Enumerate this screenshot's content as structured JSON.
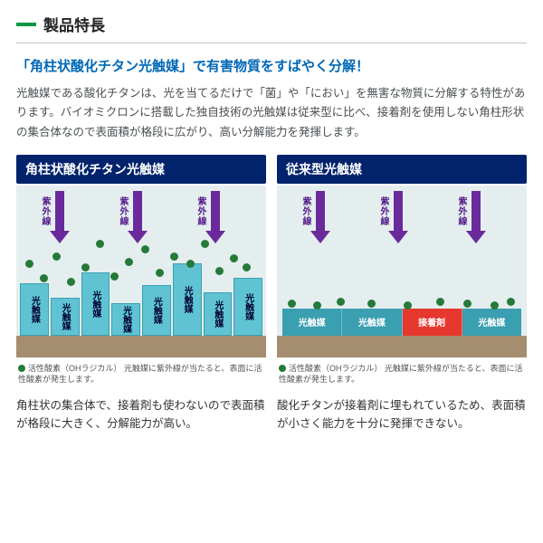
{
  "section_title": "製品特長",
  "headline": "「角柱状酸化チタン光触媒」で有害物質をすばやく分解！",
  "description": "光触媒である酸化チタンは、光を当てるだけで「菌」や「におい」を無害な物質に分解する特性があります。バイオミクロンに搭載した独自技術の光触媒は従来型に比べ、接着剤を使用しない角柱形状の集合体なので表面積が格段に広がり、高い分解能力を発揮します。",
  "panels": {
    "left": {
      "title": "角柱状酸化チタン光触媒",
      "uv_label": "紫外線",
      "uv_positions": [
        38,
        124,
        210
      ],
      "pillar_label": "光触媒",
      "pillar_heights": [
        58,
        42,
        70,
        36,
        56,
        80,
        48,
        64
      ],
      "dot_positions": [
        [
          10,
          82
        ],
        [
          26,
          98
        ],
        [
          40,
          74
        ],
        [
          56,
          102
        ],
        [
          72,
          86
        ],
        [
          88,
          60
        ],
        [
          104,
          96
        ],
        [
          120,
          80
        ],
        [
          138,
          66
        ],
        [
          154,
          92
        ],
        [
          170,
          74
        ],
        [
          188,
          82
        ],
        [
          204,
          60
        ],
        [
          220,
          90
        ],
        [
          236,
          76
        ],
        [
          250,
          86
        ]
      ],
      "legend": "活性酸素（OHラジカル）\n光触媒に紫外線が当たると、表面に活性酸素が発生します。",
      "caption": "角柱状の集合体で、接着剤も使わないので表面積が格段に大きく、分解能力が高い。",
      "colors": {
        "bg": "#e5eeee",
        "strip": "#a58e6f",
        "pillar": "#5fc3d3",
        "uv": "#6a2a9c",
        "dot": "#257a3a"
      }
    },
    "right": {
      "title": "従来型光触媒",
      "uv_label": "紫外線",
      "uv_positions": [
        38,
        124,
        210
      ],
      "blocks": [
        {
          "label": "光触媒",
          "type": "cat"
        },
        {
          "label": "光触媒",
          "type": "cat"
        },
        {
          "label": "接着剤",
          "type": "adh"
        },
        {
          "label": "光触媒",
          "type": "cat"
        }
      ],
      "dot_positions": [
        [
          12,
          126
        ],
        [
          40,
          128
        ],
        [
          66,
          124
        ],
        [
          100,
          126
        ],
        [
          140,
          128
        ],
        [
          176,
          124
        ],
        [
          206,
          126
        ],
        [
          236,
          128
        ],
        [
          254,
          124
        ]
      ],
      "legend": "活性酸素（OHラジカル）\n光触媒に紫外線が当たると、表面に活性酸素が発生します。",
      "caption": "酸化チタンが接着剤に埋もれているため、表面積が小さく能力を十分に発揮できない。",
      "colors": {
        "bg": "#e5eeee",
        "strip": "#a58e6f",
        "cat": "#3a9fb1",
        "adh": "#e6382e",
        "uv": "#6a2a9c",
        "dot": "#257a3a"
      }
    }
  }
}
